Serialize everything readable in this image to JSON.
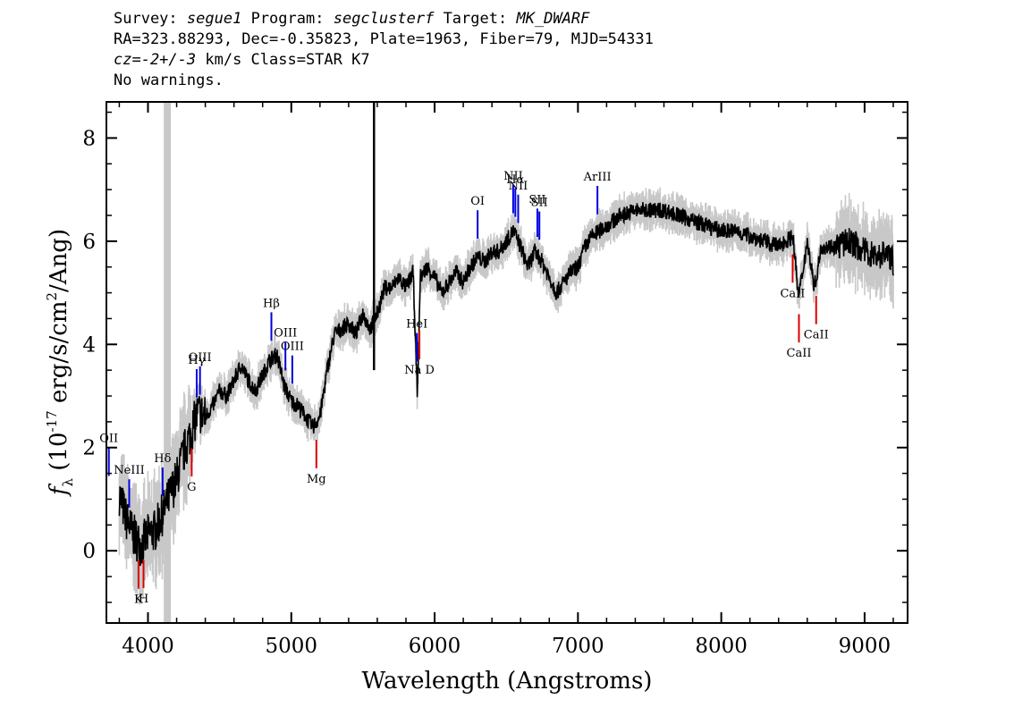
{
  "header": {
    "line1": {
      "survey_label": "Survey:",
      "survey": "segue1",
      "program_label": "Program:",
      "program": "segclusterf",
      "target_label": "Target:",
      "target": "MK_DWARF"
    },
    "line2": "RA=323.88293, Dec=-0.35823, Plate=1963, Fiber=79, MJD=54331",
    "line3": {
      "cz": "cz=-2+/-3",
      "rest": " km/s Class=STAR K7"
    },
    "line4": "No warnings."
  },
  "chart_data": {
    "type": "line",
    "xlabel": "Wavelength (Angstroms)",
    "ylabel": "f_λ (10^-17 erg/s/cm^2/Ang)",
    "xlim": [
      3710,
      9300
    ],
    "ylim": [
      -1.4,
      8.7
    ],
    "x_ticks": [
      4000,
      5000,
      6000,
      7000,
      8000,
      9000
    ],
    "y_ticks": [
      0,
      2,
      4,
      6,
      8
    ],
    "colors": {
      "spectrum": "#000000",
      "error": "#c8c8c8",
      "emission": "#0000dd",
      "absorption": "#dd0000"
    },
    "masked_band": [
      4110,
      4160
    ],
    "series": [
      {
        "x": [
          3800,
          3850,
          3900,
          3950,
          4000,
          4050,
          4100,
          4200,
          4250,
          4300,
          4350,
          4400,
          4450,
          4500,
          4550,
          4600,
          4650,
          4700,
          4750,
          4800,
          4850,
          4900,
          4950,
          5000,
          5050,
          5100,
          5150,
          5200,
          5250,
          5300,
          5350,
          5400,
          5450,
          5500,
          5550,
          5600,
          5650,
          5700,
          5750,
          5800,
          5850,
          5880,
          5900,
          5950,
          6000,
          6050,
          6100,
          6150,
          6200,
          6250,
          6300,
          6350,
          6400,
          6450,
          6500,
          6550,
          6600,
          6650,
          6700,
          6750,
          6800,
          6850,
          6900,
          6950,
          7000,
          7050,
          7100,
          7150,
          7200,
          7300,
          7400,
          7500,
          7600,
          7700,
          7800,
          7900,
          8000,
          8100,
          8200,
          8300,
          8400,
          8500,
          8540,
          8600,
          8650,
          8700,
          8800,
          8900,
          9000,
          9100,
          9150,
          9200
        ],
        "y": [
          1.1,
          0.6,
          0.3,
          0.1,
          0.3,
          0.4,
          0.7,
          1.4,
          1.9,
          2.3,
          2.7,
          2.6,
          2.8,
          3.1,
          3.0,
          3.3,
          3.6,
          3.3,
          3.1,
          3.4,
          3.7,
          3.8,
          3.2,
          2.9,
          2.8,
          2.6,
          2.4,
          2.6,
          3.5,
          4.2,
          4.3,
          4.4,
          4.2,
          4.6,
          4.3,
          4.6,
          5.1,
          5.1,
          5.3,
          5.1,
          5.4,
          3.0,
          5.3,
          5.5,
          5.3,
          5.0,
          5.2,
          5.4,
          5.2,
          5.5,
          5.7,
          5.6,
          5.8,
          5.8,
          6.0,
          6.2,
          5.9,
          5.5,
          5.8,
          5.6,
          5.3,
          5.0,
          5.2,
          5.4,
          5.5,
          5.9,
          6.1,
          6.2,
          6.3,
          6.5,
          6.6,
          6.6,
          6.6,
          6.5,
          6.4,
          6.3,
          6.2,
          6.2,
          6.1,
          6.0,
          5.9,
          6.1,
          4.9,
          6.0,
          5.1,
          5.9,
          5.9,
          6.0,
          5.8,
          5.7,
          5.8,
          5.6
        ]
      }
    ],
    "emission_lines": [
      {
        "label": "OII",
        "x": 3727
      },
      {
        "label": "NeIII",
        "x": 3869
      },
      {
        "label": "Hδ",
        "x": 4102
      },
      {
        "label": "Hγ",
        "x": 4340
      },
      {
        "label": "OIII",
        "x": 4363
      },
      {
        "label": "Hβ",
        "x": 4861
      },
      {
        "label": "OIII",
        "x": 4959
      },
      {
        "label": "OIII",
        "x": 5007
      },
      {
        "label": "HeI",
        "x": 5876
      },
      {
        "label": "OI",
        "x": 6300
      },
      {
        "label": "NII",
        "x": 6548
      },
      {
        "label": "Hα",
        "x": 6563
      },
      {
        "label": "NII",
        "x": 6583
      },
      {
        "label": "SII",
        "x": 6717
      },
      {
        "label": "SII",
        "x": 6731
      },
      {
        "label": "ArIII",
        "x": 7136
      }
    ],
    "absorption_lines": [
      {
        "label": "K",
        "x": 3934
      },
      {
        "label": "H",
        "x": 3969
      },
      {
        "label": "G",
        "x": 4305
      },
      {
        "label": "Mg",
        "x": 5175
      },
      {
        "label": "Na D",
        "x": 5894
      },
      {
        "label": "CaII",
        "x": 8498
      },
      {
        "label": "CaII",
        "x": 8542
      },
      {
        "label": "CaII",
        "x": 8662
      }
    ]
  }
}
